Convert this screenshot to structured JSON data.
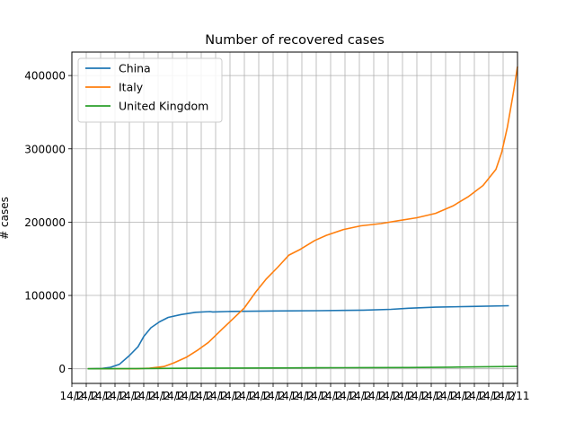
{
  "chart_data": {
    "type": "line",
    "title": "Number of recovered cases",
    "xlabel": "",
    "ylabel": "# cases",
    "ylim": [
      -20000,
      432000
    ],
    "x_range": [
      "2020-01-22",
      "2020-11-11"
    ],
    "grid": true,
    "legend_position": "top-left",
    "y_ticks": [
      0,
      100000,
      200000,
      300000,
      400000
    ],
    "y_tick_labels": [
      "0",
      "100000",
      "200000",
      "300000",
      "400000"
    ],
    "x_ticks": [
      "2020-01-11",
      "2020-01-21",
      "2020-01-31",
      "2020-02-10",
      "2020-02-20",
      "2020-03-01",
      "2020-03-11",
      "2020-03-21",
      "2020-03-31",
      "2020-04-10",
      "2020-04-20",
      "2020-04-30",
      "2020-05-10",
      "2020-05-20",
      "2020-05-30",
      "2020-06-09",
      "2020-06-19",
      "2020-06-29",
      "2020-07-09",
      "2020-07-19",
      "2020-07-29",
      "2020-08-08",
      "2020-08-18",
      "2020-08-28",
      "2020-09-07",
      "2020-09-17",
      "2020-09-27",
      "2020-10-07",
      "2020-10-17",
      "2020-10-27",
      "2020-11-06",
      "2020-11-16"
    ],
    "x_tick_labels": [
      "14/2",
      "14/2",
      "14/2",
      "14/2",
      "14/2",
      "14/2",
      "14/2",
      "14/2",
      "14/2",
      "14/2",
      "14/2",
      "14/2",
      "14/2",
      "14/2",
      "14/2",
      "14/2",
      "14/2",
      "14/2",
      "14/2",
      "14/2",
      "14/2",
      "14/2",
      "14/2",
      "14/2",
      "14/2",
      "14/2",
      "14/2",
      "14/2",
      "14/2",
      "14/2",
      "14/2",
      "1/11"
    ],
    "series": [
      {
        "name": "China",
        "color": "#1f77b4",
        "points": [
          [
            "2020-01-22",
            0
          ],
          [
            "2020-02-01",
            500
          ],
          [
            "2020-02-07",
            2000
          ],
          [
            "2020-02-13",
            6000
          ],
          [
            "2020-02-20",
            18000
          ],
          [
            "2020-02-26",
            30000
          ],
          [
            "2020-03-01",
            44000
          ],
          [
            "2020-03-06",
            56000
          ],
          [
            "2020-03-12",
            64000
          ],
          [
            "2020-03-18",
            70000
          ],
          [
            "2020-03-27",
            74000
          ],
          [
            "2020-04-06",
            77000
          ],
          [
            "2020-04-16",
            78000
          ],
          [
            "2020-04-18",
            77500
          ],
          [
            "2020-05-01",
            78200
          ],
          [
            "2020-06-01",
            78800
          ],
          [
            "2020-07-01",
            79200
          ],
          [
            "2020-08-01",
            80000
          ],
          [
            "2020-08-20",
            81000
          ],
          [
            "2020-09-01",
            82500
          ],
          [
            "2020-09-20",
            84000
          ],
          [
            "2020-10-15",
            85000
          ],
          [
            "2020-11-10",
            86000
          ]
        ]
      },
      {
        "name": "Italy",
        "color": "#ff7f0e",
        "points": [
          [
            "2020-01-22",
            0
          ],
          [
            "2020-02-25",
            0
          ],
          [
            "2020-03-05",
            800
          ],
          [
            "2020-03-15",
            3000
          ],
          [
            "2020-03-22",
            8000
          ],
          [
            "2020-03-31",
            16000
          ],
          [
            "2020-04-08",
            26000
          ],
          [
            "2020-04-15",
            36000
          ],
          [
            "2020-04-25",
            55000
          ],
          [
            "2020-05-02",
            68000
          ],
          [
            "2020-05-10",
            83000
          ],
          [
            "2020-05-18",
            105000
          ],
          [
            "2020-05-25",
            122000
          ],
          [
            "2020-06-02",
            138000
          ],
          [
            "2020-06-10",
            155000
          ],
          [
            "2020-06-18",
            163000
          ],
          [
            "2020-06-28",
            175000
          ],
          [
            "2020-07-06",
            182000
          ],
          [
            "2020-07-18",
            190000
          ],
          [
            "2020-07-30",
            195000
          ],
          [
            "2020-08-13",
            198000
          ],
          [
            "2020-08-25",
            202000
          ],
          [
            "2020-09-07",
            206000
          ],
          [
            "2020-09-20",
            212000
          ],
          [
            "2020-10-02",
            222000
          ],
          [
            "2020-10-13",
            235000
          ],
          [
            "2020-10-23",
            250000
          ],
          [
            "2020-11-01",
            272000
          ],
          [
            "2020-11-05",
            295000
          ],
          [
            "2020-11-09",
            330000
          ],
          [
            "2020-11-13",
            375000
          ],
          [
            "2020-11-16",
            412000
          ]
        ]
      },
      {
        "name": "United Kingdom",
        "color": "#2ca02c",
        "points": [
          [
            "2020-01-22",
            0
          ],
          [
            "2020-03-01",
            300
          ],
          [
            "2020-04-01",
            700
          ],
          [
            "2020-05-01",
            900
          ],
          [
            "2020-06-01",
            1100
          ],
          [
            "2020-07-01",
            1300
          ],
          [
            "2020-08-01",
            1500
          ],
          [
            "2020-09-01",
            1700
          ],
          [
            "2020-10-01",
            2200
          ],
          [
            "2020-11-16",
            3200
          ]
        ]
      }
    ]
  }
}
